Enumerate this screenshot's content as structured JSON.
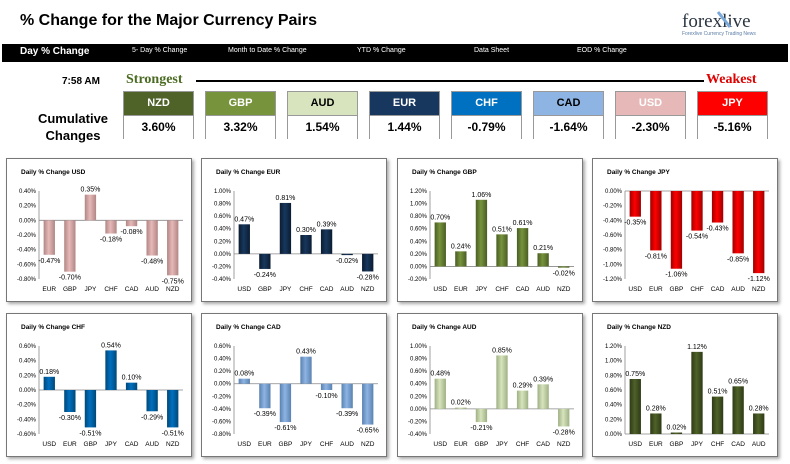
{
  "header": {
    "title": "% Change for the Major Currency Pairs",
    "logo_text": "forexlive",
    "logo_tagline": "Forexlive Currency Trading News"
  },
  "nav": {
    "items": [
      "Day % Change",
      "5- Day % Change",
      "Month to Date % Change",
      "YTD % Change",
      "Data Sheet",
      "EOD % Change"
    ]
  },
  "ranking": {
    "time": "7:58 AM",
    "strongest_label": "Strongest",
    "weakest_label": "Weakest",
    "row_label_line1": "Cumulative",
    "row_label_line2": "Changes",
    "currencies": [
      {
        "code": "NZD",
        "value": "3.60%",
        "color": "#4f6228",
        "text_color": "#ffffff"
      },
      {
        "code": "GBP",
        "value": "3.32%",
        "color": "#77933c",
        "text_color": "#ffffff"
      },
      {
        "code": "AUD",
        "value": "1.54%",
        "color": "#d7e4bd",
        "text_color": "#000000"
      },
      {
        "code": "EUR",
        "value": "1.44%",
        "color": "#17375e",
        "text_color": "#ffffff"
      },
      {
        "code": "CHF",
        "value": "-0.79%",
        "color": "#0070c0",
        "text_color": "#ffffff"
      },
      {
        "code": "CAD",
        "value": "-1.64%",
        "color": "#8db4e2",
        "text_color": "#000000"
      },
      {
        "code": "USD",
        "value": "-2.30%",
        "color": "#e6b9b8",
        "text_color": "#ffffff"
      },
      {
        "code": "JPY",
        "value": "-5.16%",
        "color": "#ff0000",
        "text_color": "#ffffff"
      }
    ]
  },
  "chart_data": [
    {
      "type": "bar",
      "title": "Daily % Change USD",
      "categories": [
        "EUR",
        "GBP",
        "JPY",
        "CHF",
        "CAD",
        "AUD",
        "NZD"
      ],
      "values": [
        -0.47,
        -0.7,
        0.35,
        -0.18,
        -0.08,
        -0.48,
        -0.75
      ],
      "labels": [
        "-0.47%",
        "-0.70%",
        "0.35%",
        "-0.18%",
        "-0.08%",
        "-0.48%",
        "-0.75%"
      ],
      "yticks": [
        "0.40%",
        "0.20%",
        "0.00%",
        "-0.20%",
        "-0.40%",
        "-0.60%",
        "-0.80%"
      ],
      "ylim": [
        -0.8,
        0.4
      ],
      "color": "#e6b9b8",
      "dark": "#b08684"
    },
    {
      "type": "bar",
      "title": "Daily % Change EUR",
      "categories": [
        "USD",
        "GBP",
        "JPY",
        "CHF",
        "CAD",
        "AUD",
        "NZD"
      ],
      "values": [
        0.47,
        -0.24,
        0.81,
        0.3,
        0.39,
        -0.02,
        -0.28
      ],
      "labels": [
        "0.47%",
        "-0.24%",
        "0.81%",
        "0.30%",
        "0.39%",
        "-0.02%",
        "-0.28%"
      ],
      "yticks": [
        "1.00%",
        "0.80%",
        "0.60%",
        "0.40%",
        "0.20%",
        "0.00%",
        "-0.20%",
        "-0.40%"
      ],
      "ylim": [
        -0.4,
        1.0
      ],
      "color": "#17375e",
      "dark": "#0b1c30"
    },
    {
      "type": "bar",
      "title": "Daily % Change GBP",
      "categories": [
        "USD",
        "EUR",
        "JPY",
        "CHF",
        "CAD",
        "AUD",
        "NZD"
      ],
      "values": [
        0.7,
        0.24,
        1.06,
        0.51,
        0.61,
        0.21,
        -0.02
      ],
      "labels": [
        "0.70%",
        "0.24%",
        "1.06%",
        "0.51%",
        "0.61%",
        "0.21%",
        "-0.02%"
      ],
      "yticks": [
        "1.20%",
        "1.00%",
        "0.80%",
        "0.60%",
        "0.40%",
        "0.20%",
        "0.00%",
        "-0.20%"
      ],
      "ylim": [
        -0.2,
        1.2
      ],
      "color": "#77933c",
      "dark": "#4a5d24"
    },
    {
      "type": "bar",
      "title": "Daily % Change JPY",
      "categories": [
        "USD",
        "EUR",
        "GBP",
        "CHF",
        "CAD",
        "AUD",
        "NZD"
      ],
      "values": [
        -0.35,
        -0.81,
        -1.06,
        -0.54,
        -0.43,
        -0.85,
        -1.12
      ],
      "labels": [
        "-0.35%",
        "-0.81%",
        "-1.06%",
        "-0.54%",
        "-0.43%",
        "-0.85%",
        "-1.12%"
      ],
      "yticks": [
        "0.00%",
        "-0.20%",
        "-0.40%",
        "-0.60%",
        "-0.80%",
        "-1.00%",
        "-1.20%"
      ],
      "ylim": [
        -1.2,
        0.0
      ],
      "color": "#ff0000",
      "dark": "#a00000"
    },
    {
      "type": "bar",
      "title": "Daily % Change CHF",
      "categories": [
        "USD",
        "EUR",
        "GBP",
        "JPY",
        "CAD",
        "AUD",
        "NZD"
      ],
      "values": [
        0.18,
        -0.3,
        -0.51,
        0.54,
        0.1,
        -0.29,
        -0.51
      ],
      "labels": [
        "0.18%",
        "-0.30%",
        "-0.51%",
        "0.54%",
        "0.10%",
        "-0.29%",
        "-0.51%"
      ],
      "yticks": [
        "0.60%",
        "0.40%",
        "0.20%",
        "0.00%",
        "-0.20%",
        "-0.40%",
        "-0.60%"
      ],
      "ylim": [
        -0.6,
        0.6
      ],
      "color": "#0070c0",
      "dark": "#004878"
    },
    {
      "type": "bar",
      "title": "Daily % Change CAD",
      "categories": [
        "USD",
        "EUR",
        "GBP",
        "JPY",
        "CHF",
        "AUD",
        "NZD"
      ],
      "values": [
        0.08,
        -0.39,
        -0.61,
        0.43,
        -0.1,
        -0.39,
        -0.65
      ],
      "labels": [
        "0.08%",
        "-0.39%",
        "-0.61%",
        "0.43%",
        "-0.10%",
        "-0.39%",
        "-0.65%"
      ],
      "yticks": [
        "0.60%",
        "0.40%",
        "0.20%",
        "0.00%",
        "-0.20%",
        "-0.40%",
        "-0.60%",
        "-0.80%"
      ],
      "ylim": [
        -0.8,
        0.6
      ],
      "color": "#8db4e2",
      "dark": "#5a82b0"
    },
    {
      "type": "bar",
      "title": "Daily % Change AUD",
      "categories": [
        "USD",
        "EUR",
        "GBP",
        "JPY",
        "CHF",
        "CAD",
        "NZD"
      ],
      "values": [
        0.48,
        0.02,
        -0.21,
        0.85,
        0.29,
        0.39,
        -0.28
      ],
      "labels": [
        "0.48%",
        "0.02%",
        "-0.21%",
        "0.85%",
        "0.29%",
        "0.39%",
        "-0.28%"
      ],
      "yticks": [
        "1.00%",
        "0.80%",
        "0.60%",
        "0.40%",
        "0.20%",
        "0.00%",
        "-0.20%",
        "-0.40%"
      ],
      "ylim": [
        -0.4,
        1.0
      ],
      "color": "#d7e4bd",
      "dark": "#9fb084"
    },
    {
      "type": "bar",
      "title": "Daily % Change NZD",
      "categories": [
        "USD",
        "EUR",
        "GBP",
        "JPY",
        "CHF",
        "CAD",
        "AUD"
      ],
      "values": [
        0.75,
        0.28,
        0.02,
        1.12,
        0.51,
        0.65,
        0.28
      ],
      "labels": [
        "0.75%",
        "0.28%",
        "0.02%",
        "1.12%",
        "0.51%",
        "0.65%",
        "0.28%"
      ],
      "yticks": [
        "1.20%",
        "1.00%",
        "0.80%",
        "0.60%",
        "0.40%",
        "0.20%",
        "0.00%"
      ],
      "ylim": [
        0.0,
        1.2
      ],
      "color": "#4f6228",
      "dark": "#2e3a17"
    }
  ]
}
